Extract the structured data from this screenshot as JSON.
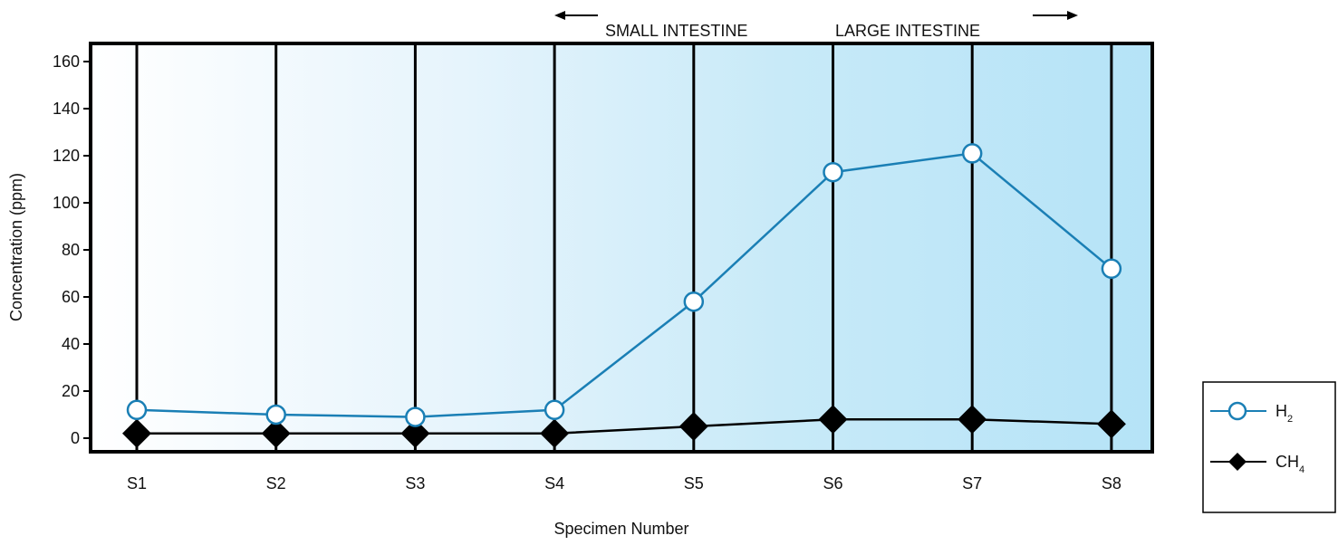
{
  "chart_data": {
    "type": "line",
    "ylabel": "Concentration (ppm)",
    "xlabel": "Specimen Number",
    "categories": [
      "S1",
      "S2",
      "S3",
      "S4",
      "S5",
      "S6",
      "S7",
      "S8"
    ],
    "ylim": [
      0,
      160
    ],
    "yticks": [
      0,
      20,
      40,
      60,
      80,
      100,
      120,
      140,
      160
    ],
    "grid": "vertical lines at each specimen",
    "legend_position": "right",
    "region_labels": {
      "left": "SMALL INTESTINE",
      "right": "LARGE INTESTINE"
    },
    "series": [
      {
        "name": "H",
        "subscript": "2",
        "marker": "open-circle",
        "color": "#1a7fb5",
        "values": [
          12,
          10,
          9,
          12,
          58,
          113,
          121,
          72
        ]
      },
      {
        "name": "CH",
        "subscript": "4",
        "marker": "filled-diamond",
        "color": "#000000",
        "values": [
          2,
          2,
          2,
          2,
          5,
          8,
          8,
          6
        ]
      }
    ],
    "background_gradient": [
      "#ffffff",
      "#b5e3f7"
    ]
  }
}
